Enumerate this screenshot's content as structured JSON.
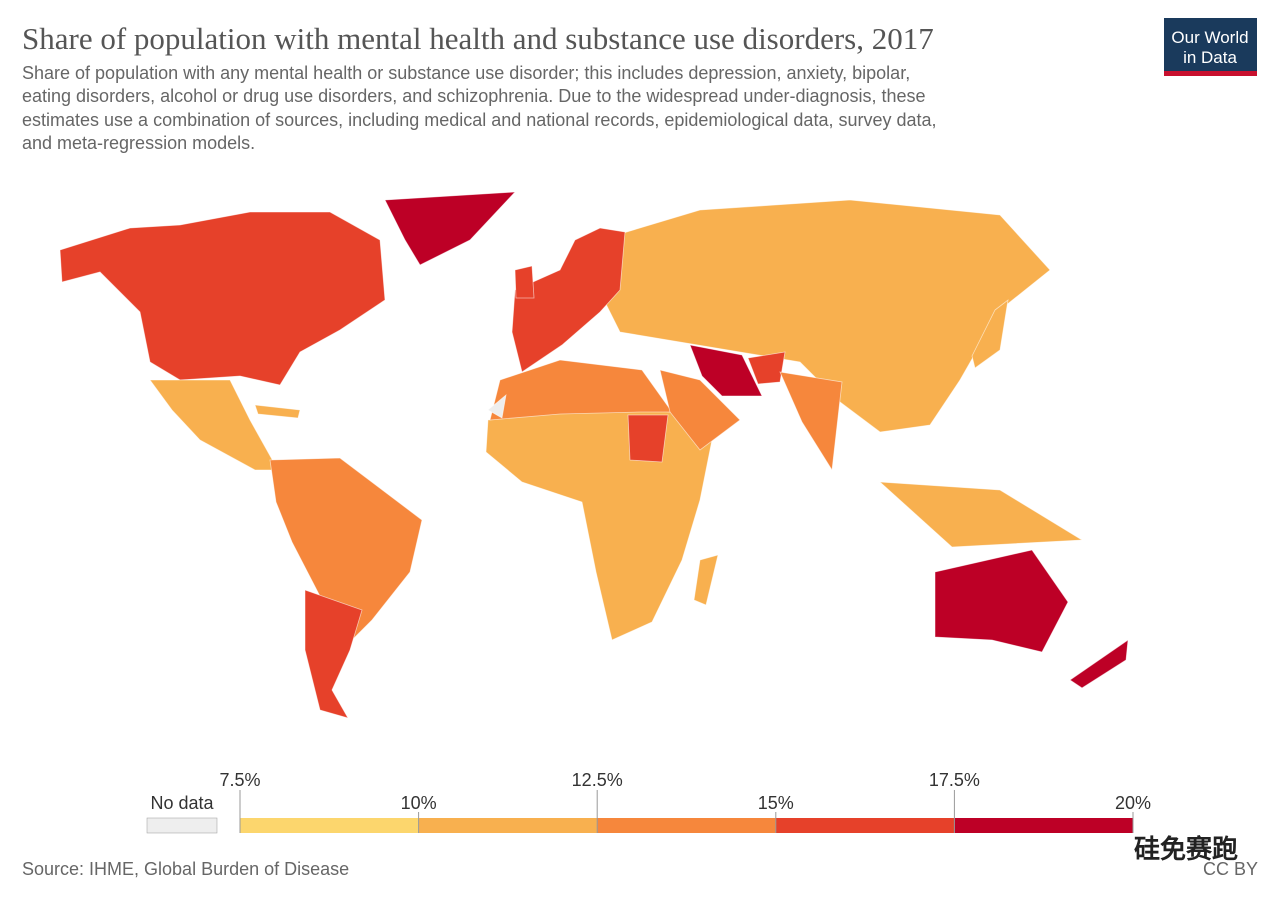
{
  "header": {
    "title": "Share of population with mental health and substance use disorders, 2017",
    "subtitle": [
      "Share of population with any mental health or substance use disorder; this includes depression, anxiety, bipolar,",
      "eating disorders, alcohol or drug use disorders, and schizophrenia. Due to the widespread under-diagnosis, these",
      "estimates use a combination of sources, including medical and national records, epidemiological data, survey data,",
      "and meta-regression models."
    ]
  },
  "logo": [
    "Our World",
    "in Data"
  ],
  "legend": {
    "no_data_label": "No data",
    "ticks": [
      {
        "value": 7.5,
        "label": "7.5%"
      },
      {
        "value": 10,
        "label": "10%"
      },
      {
        "value": 12.5,
        "label": "12.5%"
      },
      {
        "value": 15,
        "label": "15%"
      },
      {
        "value": 17.5,
        "label": "17.5%"
      },
      {
        "value": 20,
        "label": "20%"
      }
    ],
    "colors": [
      "#fcd66d",
      "#f8b04f",
      "#f6873c",
      "#e6412a",
      "#bd0026"
    ],
    "no_data_color": "#eeeeee"
  },
  "source": "Source: IHME, Global Burden of Disease",
  "license": "CC BY",
  "watermark": "硅免赛跑"
}
